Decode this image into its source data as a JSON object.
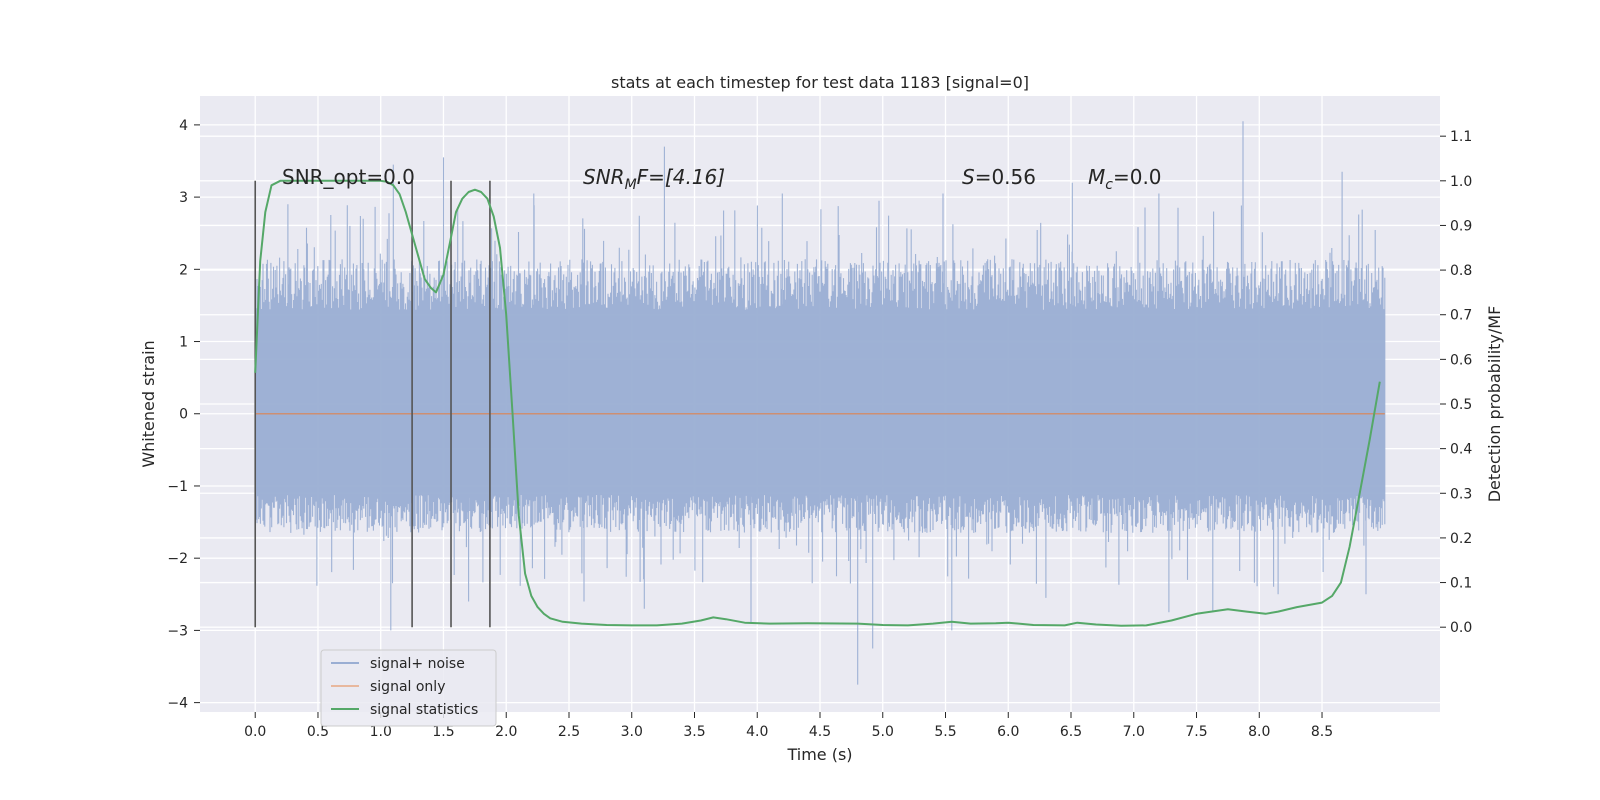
{
  "chart_data": {
    "type": "line",
    "title": "stats at each timestep for test data 1183 [signal=0]",
    "xlabel": "Time (s)",
    "ylabel": "Whitened strain",
    "y2label": "Detection probability/MF",
    "xlim": [
      -0.44,
      9.44
    ],
    "ylim": [
      -4.13,
      4.4
    ],
    "y2lim": [
      -0.19,
      1.19
    ],
    "xticks": [
      "0.0",
      "0.5",
      "1.0",
      "1.5",
      "2.0",
      "2.5",
      "3.0",
      "3.5",
      "4.0",
      "4.5",
      "5.0",
      "5.5",
      "6.0",
      "6.5",
      "7.0",
      "7.5",
      "8.0",
      "8.5"
    ],
    "yticks": [
      "4",
      "3",
      "2",
      "1",
      "0",
      "−1",
      "−2",
      "−3",
      "−4"
    ],
    "y2ticks": [
      "1.1",
      "1.0",
      "0.9",
      "0.8",
      "0.7",
      "0.6",
      "0.5",
      "0.4",
      "0.3",
      "0.2",
      "0.1",
      "0.0"
    ],
    "grid": true,
    "legend_position": "lower-left",
    "annotations": {
      "snr_opt": "SNR_opt=0.0",
      "snr_mf_base": "SNR",
      "snr_mf_sub": "M",
      "snr_mf_rest": "F=[4.16]",
      "s_sym": "S",
      "s_val": "=0.56",
      "mc_sym": "M",
      "mc_sub": "c",
      "mc_val": "=0.0"
    },
    "vertical_markers_x": [
      0.0,
      1.25,
      1.56,
      1.87
    ],
    "series": [
      {
        "name": "signal+ noise",
        "color": "#9aaed3",
        "axis": "left",
        "x_range": [
          0.0,
          9.0
        ],
        "typical_band": [
          -1.5,
          2.0
        ],
        "peaks": [
          [
            0.26,
            2.9
          ],
          [
            0.86,
            2.7
          ],
          [
            1.1,
            3.45
          ],
          [
            1.5,
            3.55
          ],
          [
            2.22,
            3.05
          ],
          [
            3.26,
            3.7
          ],
          [
            4.2,
            3.05
          ],
          [
            4.97,
            2.95
          ],
          [
            5.48,
            3.05
          ],
          [
            6.51,
            3.2
          ],
          [
            7.2,
            3.05
          ],
          [
            7.87,
            4.05
          ],
          [
            8.66,
            3.35
          ],
          [
            1.08,
            -3.0
          ],
          [
            1.7,
            -2.6
          ],
          [
            2.62,
            -2.6
          ],
          [
            3.1,
            -2.7
          ],
          [
            3.95,
            -2.9
          ],
          [
            4.8,
            -3.75
          ],
          [
            4.92,
            -3.25
          ],
          [
            5.55,
            -3.0
          ],
          [
            6.3,
            -2.55
          ],
          [
            7.28,
            -2.75
          ],
          [
            7.63,
            -2.75
          ],
          [
            8.15,
            -2.5
          ],
          [
            8.85,
            -2.5
          ]
        ]
      },
      {
        "name": "signal only",
        "color": "#dd8452",
        "axis": "left",
        "x": [
          0.0,
          9.0
        ],
        "y": [
          0.0,
          0.0
        ]
      },
      {
        "name": "signal statistics",
        "color": "#55a868",
        "axis": "right",
        "x": [
          0.0,
          0.04,
          0.08,
          0.13,
          0.2,
          0.3,
          0.5,
          0.7,
          0.9,
          1.0,
          1.05,
          1.1,
          1.15,
          1.2,
          1.25,
          1.3,
          1.35,
          1.4,
          1.44,
          1.5,
          1.55,
          1.6,
          1.65,
          1.7,
          1.75,
          1.8,
          1.85,
          1.9,
          1.95,
          2.0,
          2.05,
          2.1,
          2.15,
          2.2,
          2.25,
          2.3,
          2.35,
          2.45,
          2.6,
          2.8,
          3.0,
          3.2,
          3.4,
          3.55,
          3.65,
          3.75,
          3.9,
          4.1,
          4.4,
          4.8,
          5.0,
          5.2,
          5.4,
          5.55,
          5.7,
          5.9,
          6.0,
          6.2,
          6.45,
          6.55,
          6.7,
          6.9,
          7.1,
          7.3,
          7.5,
          7.75,
          7.9,
          8.05,
          8.15,
          8.3,
          8.5,
          8.58,
          8.65,
          8.72,
          8.8,
          8.88,
          8.96
        ],
        "y": [
          0.57,
          0.82,
          0.93,
          0.99,
          1.0,
          1.0,
          1.0,
          1.0,
          1.0,
          1.0,
          0.998,
          0.99,
          0.97,
          0.93,
          0.88,
          0.83,
          0.78,
          0.76,
          0.75,
          0.79,
          0.86,
          0.93,
          0.96,
          0.975,
          0.98,
          0.975,
          0.96,
          0.92,
          0.85,
          0.7,
          0.48,
          0.25,
          0.12,
          0.07,
          0.045,
          0.03,
          0.02,
          0.012,
          0.008,
          0.005,
          0.004,
          0.004,
          0.008,
          0.015,
          0.022,
          0.018,
          0.01,
          0.008,
          0.009,
          0.008,
          0.005,
          0.004,
          0.008,
          0.012,
          0.008,
          0.009,
          0.01,
          0.005,
          0.004,
          0.01,
          0.006,
          0.003,
          0.004,
          0.015,
          0.03,
          0.04,
          0.035,
          0.03,
          0.035,
          0.045,
          0.055,
          0.07,
          0.1,
          0.18,
          0.3,
          0.42,
          0.55
        ]
      }
    ]
  }
}
